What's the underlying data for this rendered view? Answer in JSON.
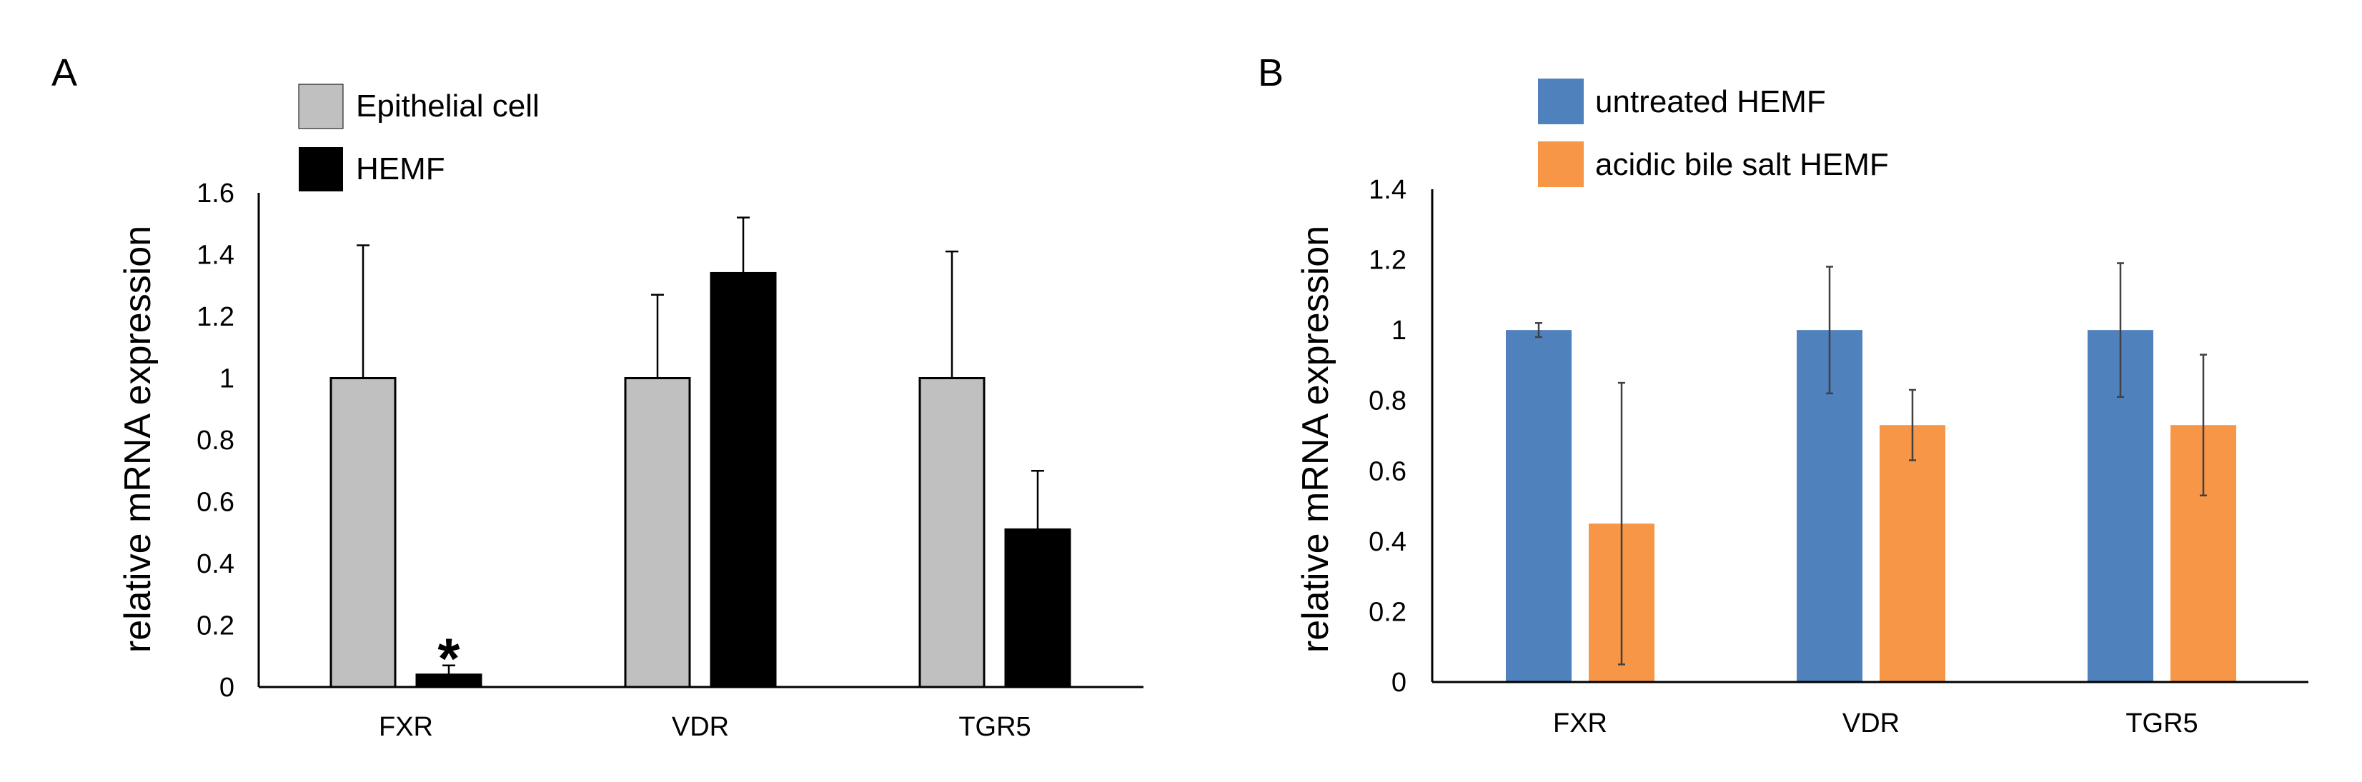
{
  "chart_data": [
    {
      "panel": "A",
      "type": "bar",
      "categories": [
        "FXR",
        "VDR",
        "TGR5"
      ],
      "ylabel": "relative mRNA expression",
      "ylim": [
        0,
        1.6
      ],
      "yticks": [
        "0",
        "0.2",
        "0.4",
        "0.6",
        "0.8",
        "1",
        "1.2",
        "1.4",
        "1.6"
      ],
      "legend_position": "top-left",
      "grid": false,
      "series": [
        {
          "name": "Epithelial cell",
          "color": "#c0c0c0",
          "stroke": "#000000",
          "values": [
            1.0,
            1.0,
            1.0
          ],
          "error": [
            0.43,
            0.27,
            0.41
          ],
          "error_style": "upper"
        },
        {
          "name": "HEMF",
          "color": "#000000",
          "stroke": "#000000",
          "values": [
            0.04,
            1.34,
            0.51
          ],
          "error": [
            0.03,
            0.18,
            0.19
          ],
          "error_style": "upper"
        }
      ],
      "annotations": [
        {
          "text": "*",
          "category": "FXR",
          "series": "HEMF"
        }
      ]
    },
    {
      "panel": "B",
      "type": "bar",
      "categories": [
        "FXR",
        "VDR",
        "TGR5"
      ],
      "ylabel": "relative mRNA expression",
      "ylim": [
        0,
        1.4
      ],
      "yticks": [
        "0",
        "0.2",
        "0.4",
        "0.6",
        "0.8",
        "1",
        "1.2",
        "1.4"
      ],
      "legend_position": "top-left",
      "grid": false,
      "series": [
        {
          "name": "untreated HEMF",
          "color": "#4f81bd",
          "stroke": "none",
          "values": [
            1.0,
            1.0,
            1.0
          ],
          "error": [
            0.02,
            0.18,
            0.19
          ],
          "error_style": "both"
        },
        {
          "name": "acidic bile salt HEMF",
          "color": "#f79646",
          "stroke": "none",
          "values": [
            0.45,
            0.73,
            0.73
          ],
          "error": [
            0.4,
            0.1,
            0.2
          ],
          "error_style": "both"
        }
      ]
    }
  ]
}
